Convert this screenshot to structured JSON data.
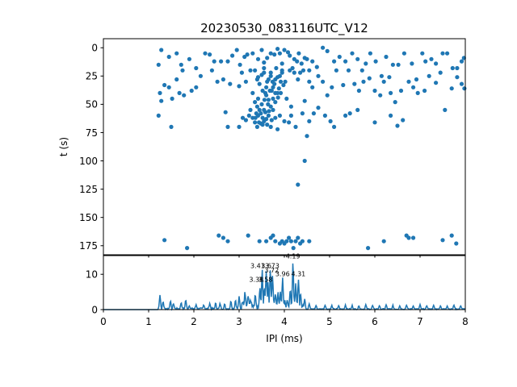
{
  "figure": {
    "title": "20230530_083116UTC_V12",
    "color": "#1f77b4"
  },
  "chart_data": [
    {
      "type": "scatter",
      "ylabel": "t (s)",
      "xlim": [
        0,
        8
      ],
      "ylim": [
        183,
        -8
      ],
      "y_ticks": [
        0,
        25,
        50,
        75,
        100,
        125,
        150,
        175
      ],
      "grid": false,
      "points": [
        [
          1.28,
          2
        ],
        [
          1.45,
          8
        ],
        [
          1.62,
          5
        ],
        [
          1.72,
          15
        ],
        [
          1.75,
          20
        ],
        [
          1.9,
          10
        ],
        [
          2.05,
          18
        ],
        [
          2.15,
          25
        ],
        [
          2.25,
          5
        ],
        [
          2.35,
          6
        ],
        [
          2.45,
          12
        ],
        [
          2.6,
          12
        ],
        [
          2.75,
          12
        ],
        [
          2.85,
          7
        ],
        [
          2.95,
          2
        ],
        [
          3.02,
          15
        ],
        [
          3.06,
          22
        ],
        [
          3.12,
          8
        ],
        [
          3.18,
          6
        ],
        [
          3.25,
          20
        ],
        [
          3.3,
          5
        ],
        [
          3.42,
          10
        ],
        [
          3.5,
          2
        ],
        [
          3.55,
          13
        ],
        [
          3.62,
          9
        ],
        [
          3.7,
          5
        ],
        [
          3.78,
          6
        ],
        [
          3.85,
          1
        ],
        [
          3.9,
          5
        ],
        [
          3.95,
          14
        ],
        [
          4.0,
          2
        ],
        [
          4.08,
          4
        ],
        [
          4.12,
          7
        ],
        [
          4.18,
          18
        ],
        [
          4.22,
          10
        ],
        [
          4.28,
          12
        ],
        [
          4.32,
          5
        ],
        [
          4.38,
          14
        ],
        [
          4.45,
          9
        ],
        [
          4.5,
          10
        ],
        [
          4.55,
          20
        ],
        [
          4.62,
          12
        ],
        [
          4.72,
          17
        ],
        [
          4.85,
          0
        ],
        [
          4.95,
          3
        ],
        [
          5.1,
          12
        ],
        [
          5.22,
          8
        ],
        [
          5.35,
          12
        ],
        [
          5.5,
          5
        ],
        [
          5.62,
          10
        ],
        [
          5.72,
          20
        ],
        [
          5.8,
          14
        ],
        [
          5.9,
          5
        ],
        [
          6.02,
          12
        ],
        [
          6.15,
          25
        ],
        [
          6.25,
          8
        ],
        [
          6.4,
          15
        ],
        [
          6.52,
          15
        ],
        [
          6.65,
          5
        ],
        [
          6.82,
          14
        ],
        [
          6.92,
          28
        ],
        [
          7.05,
          5
        ],
        [
          7.12,
          12
        ],
        [
          7.25,
          10
        ],
        [
          7.35,
          14
        ],
        [
          7.45,
          22
        ],
        [
          7.5,
          5
        ],
        [
          7.6,
          5
        ],
        [
          7.72,
          18
        ],
        [
          7.82,
          18
        ],
        [
          7.92,
          12
        ],
        [
          7.97,
          9
        ],
        [
          1.22,
          15
        ],
        [
          1.25,
          40
        ],
        [
          1.35,
          33
        ],
        [
          1.45,
          35
        ],
        [
          1.52,
          45
        ],
        [
          1.62,
          28
        ],
        [
          1.68,
          40
        ],
        [
          1.78,
          42
        ],
        [
          1.95,
          38
        ],
        [
          2.05,
          35
        ],
        [
          2.4,
          20
        ],
        [
          2.52,
          30
        ],
        [
          2.65,
          28
        ],
        [
          2.8,
          32
        ],
        [
          3.0,
          34
        ],
        [
          3.15,
          30
        ],
        [
          3.42,
          26
        ],
        [
          3.55,
          22
        ],
        [
          3.62,
          30
        ],
        [
          3.7,
          25
        ],
        [
          3.75,
          35
        ],
        [
          3.8,
          28
        ],
        [
          3.85,
          40
        ],
        [
          3.9,
          25
        ],
        [
          3.95,
          22
        ],
        [
          4.02,
          30
        ],
        [
          4.12,
          20
        ],
        [
          4.22,
          22
        ],
        [
          4.3,
          28
        ],
        [
          4.35,
          22
        ],
        [
          4.42,
          20
        ],
        [
          4.55,
          30
        ],
        [
          4.62,
          35
        ],
        [
          4.75,
          25
        ],
        [
          4.85,
          30
        ],
        [
          4.95,
          42
        ],
        [
          5.05,
          35
        ],
        [
          5.15,
          20
        ],
        [
          5.3,
          33
        ],
        [
          5.42,
          20
        ],
        [
          5.55,
          32
        ],
        [
          5.65,
          38
        ],
        [
          5.75,
          30
        ],
        [
          5.88,
          27
        ],
        [
          6.0,
          38
        ],
        [
          6.12,
          42
        ],
        [
          6.2,
          30
        ],
        [
          6.32,
          26
        ],
        [
          6.45,
          48
        ],
        [
          6.58,
          38
        ],
        [
          6.75,
          30
        ],
        [
          6.85,
          35
        ],
        [
          6.95,
          40
        ],
        [
          7.1,
          38
        ],
        [
          7.2,
          25
        ],
        [
          7.35,
          31
        ],
        [
          7.55,
          55
        ],
        [
          7.7,
          36
        ],
        [
          7.82,
          26
        ],
        [
          7.92,
          32
        ],
        [
          7.98,
          36
        ],
        [
          6.35,
          40
        ],
        [
          1.22,
          60
        ],
        [
          1.28,
          47
        ],
        [
          1.5,
          70
        ],
        [
          2.7,
          57
        ],
        [
          2.75,
          70
        ],
        [
          3.0,
          70
        ],
        [
          3.08,
          62
        ],
        [
          3.15,
          64
        ],
        [
          3.22,
          60
        ],
        [
          3.25,
          55
        ],
        [
          3.3,
          62
        ],
        [
          3.35,
          66
        ],
        [
          3.38,
          58
        ],
        [
          3.4,
          70
        ],
        [
          3.42,
          60
        ],
        [
          3.45,
          55
        ],
        [
          3.48,
          67
        ],
        [
          3.52,
          62
        ],
        [
          3.55,
          65
        ],
        [
          3.58,
          57
        ],
        [
          3.62,
          68
        ],
        [
          3.65,
          60
        ],
        [
          3.7,
          70
        ],
        [
          3.75,
          55
        ],
        [
          3.8,
          62
        ],
        [
          3.85,
          72
        ],
        [
          3.9,
          60
        ],
        [
          4.0,
          65
        ],
        [
          4.1,
          66
        ],
        [
          4.15,
          60
        ],
        [
          4.4,
          58
        ],
        [
          4.55,
          65
        ],
        [
          4.5,
          78
        ],
        [
          4.65,
          58
        ],
        [
          4.75,
          53
        ],
        [
          4.9,
          60
        ],
        [
          5.02,
          65
        ],
        [
          5.1,
          70
        ],
        [
          5.35,
          60
        ],
        [
          5.45,
          58
        ],
        [
          5.62,
          55
        ],
        [
          6.0,
          66
        ],
        [
          6.35,
          60
        ],
        [
          6.5,
          69
        ],
        [
          6.62,
          64
        ],
        [
          3.3,
          40
        ],
        [
          3.35,
          48
        ],
        [
          3.42,
          45
        ],
        [
          3.5,
          50
        ],
        [
          3.58,
          40
        ],
        [
          3.65,
          46
        ],
        [
          3.7,
          52
        ],
        [
          3.55,
          55
        ],
        [
          3.75,
          45
        ],
        [
          3.8,
          48
        ],
        [
          3.92,
          40
        ],
        [
          4.05,
          45
        ],
        [
          4.15,
          52
        ],
        [
          4.45,
          47
        ],
        [
          4.25,
          70
        ],
        [
          4.3,
          121
        ],
        [
          4.45,
          100
        ],
        [
          3.35,
          20
        ],
        [
          3.4,
          28
        ],
        [
          3.45,
          32
        ],
        [
          3.5,
          24
        ],
        [
          3.55,
          18
        ],
        [
          3.6,
          35
        ],
        [
          3.65,
          28
        ],
        [
          3.7,
          22
        ],
        [
          3.72,
          38
        ],
        [
          3.78,
          32
        ],
        [
          3.82,
          18
        ],
        [
          3.85,
          26
        ],
        [
          3.88,
          36
        ],
        [
          3.92,
          30
        ],
        [
          3.95,
          20
        ],
        [
          3.98,
          33
        ],
        [
          3.52,
          38
        ],
        [
          3.6,
          42
        ],
        [
          3.68,
          38
        ],
        [
          3.74,
          30
        ],
        [
          3.8,
          40
        ],
        [
          3.86,
          44
        ],
        [
          3.56,
          46
        ],
        [
          3.64,
          50
        ],
        [
          3.4,
          52
        ],
        [
          3.48,
          58
        ],
        [
          3.52,
          68
        ],
        [
          3.6,
          63
        ],
        [
          3.66,
          56
        ],
        [
          3.72,
          64
        ],
        [
          3.36,
          62
        ],
        [
          3.44,
          66
        ],
        [
          1.35,
          170
        ],
        [
          1.85,
          177
        ],
        [
          2.55,
          166
        ],
        [
          2.65,
          168
        ],
        [
          2.75,
          171
        ],
        [
          3.2,
          166
        ],
        [
          3.45,
          171
        ],
        [
          3.6,
          171
        ],
        [
          3.7,
          168
        ],
        [
          3.75,
          166
        ],
        [
          3.8,
          171
        ],
        [
          3.9,
          173
        ],
        [
          3.95,
          171
        ],
        [
          4.0,
          173
        ],
        [
          4.05,
          171
        ],
        [
          4.1,
          168
        ],
        [
          4.15,
          171
        ],
        [
          4.2,
          177
        ],
        [
          4.25,
          171
        ],
        [
          4.3,
          168
        ],
        [
          4.35,
          173
        ],
        [
          4.4,
          171
        ],
        [
          4.55,
          171
        ],
        [
          5.85,
          177
        ],
        [
          6.2,
          171
        ],
        [
          6.7,
          166
        ],
        [
          6.75,
          168
        ],
        [
          6.85,
          168
        ],
        [
          7.5,
          170
        ],
        [
          7.7,
          166
        ],
        [
          7.8,
          173
        ]
      ]
    },
    {
      "type": "line",
      "xlabel": "IPI (ms)",
      "xlim": [
        0,
        8
      ],
      "ylim": [
        0,
        15.3
      ],
      "x_ticks": [
        0,
        1,
        2,
        3,
        4,
        5,
        6,
        7,
        8
      ],
      "y_ticks": [
        0,
        10
      ],
      "grid": false,
      "seed": 7,
      "peaks": [
        [
          1.25,
          4
        ],
        [
          1.32,
          2
        ],
        [
          1.48,
          2.2
        ],
        [
          1.55,
          1.5
        ],
        [
          1.72,
          1.8
        ],
        [
          1.82,
          2.5
        ],
        [
          1.9,
          1
        ],
        [
          2.05,
          1.2
        ],
        [
          2.22,
          1.2
        ],
        [
          2.35,
          1.6
        ],
        [
          2.48,
          1.5
        ],
        [
          2.58,
          1.4
        ],
        [
          2.68,
          1.2
        ],
        [
          2.82,
          2.2
        ],
        [
          2.92,
          2.5
        ],
        [
          3.0,
          3.5
        ],
        [
          3.08,
          2
        ],
        [
          3.13,
          4
        ],
        [
          3.2,
          3
        ],
        [
          3.26,
          2
        ],
        [
          3.36,
          3.5
        ],
        [
          3.46,
          5
        ],
        [
          3.51,
          10.5
        ],
        [
          3.56,
          6
        ],
        [
          3.6,
          10.5
        ],
        [
          3.64,
          7
        ],
        [
          3.69,
          10.5
        ],
        [
          3.74,
          9
        ],
        [
          3.8,
          4
        ],
        [
          3.86,
          4
        ],
        [
          3.91,
          4
        ],
        [
          3.96,
          8
        ],
        [
          4.01,
          2
        ],
        [
          4.07,
          2
        ],
        [
          4.13,
          5
        ],
        [
          4.19,
          13
        ],
        [
          4.25,
          6
        ],
        [
          4.31,
          8
        ],
        [
          4.36,
          4
        ],
        [
          4.45,
          3
        ],
        [
          4.55,
          1.5
        ],
        [
          4.7,
          1
        ],
        [
          4.9,
          1.2
        ],
        [
          5.05,
          1
        ],
        [
          5.2,
          1
        ],
        [
          5.35,
          1.2
        ],
        [
          5.5,
          1
        ],
        [
          5.65,
          1
        ],
        [
          5.8,
          1.2
        ],
        [
          5.95,
          1
        ],
        [
          6.1,
          1
        ],
        [
          6.25,
          1.2
        ],
        [
          6.4,
          1
        ],
        [
          6.55,
          1
        ],
        [
          6.7,
          1.2
        ],
        [
          6.85,
          1
        ],
        [
          7.0,
          1.2
        ],
        [
          7.15,
          1
        ],
        [
          7.3,
          1
        ],
        [
          7.45,
          1
        ],
        [
          7.6,
          1
        ],
        [
          7.75,
          1.2
        ],
        [
          7.9,
          1
        ]
      ],
      "labels": [
        {
          "text": "3.41",
          "x": 3.41,
          "y": 11.8
        },
        {
          "text": "3.38",
          "x": 3.38,
          "y": 7.9
        },
        {
          "text": "3.58",
          "x": 3.58,
          "y": 7.9
        },
        {
          "text": "3.6",
          "x": 3.6,
          "y": 11.8
        },
        {
          "text": "3.73",
          "x": 3.73,
          "y": 11.8
        },
        {
          "text": "3.72",
          "x": 3.72,
          "y": 10.5
        },
        {
          "text": "3.96",
          "x": 3.96,
          "y": 9.5
        },
        {
          "text": "4.19",
          "x": 4.19,
          "y": 14.5
        },
        {
          "text": "4.31",
          "x": 4.31,
          "y": 9.5
        }
      ]
    }
  ]
}
